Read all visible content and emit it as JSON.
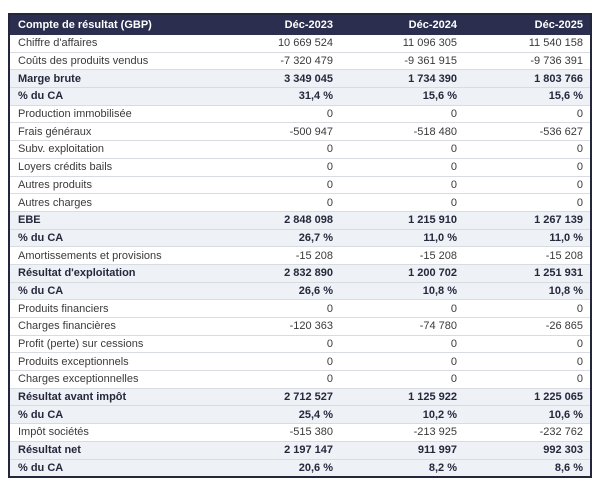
{
  "table": {
    "header": {
      "title": "Compte de résultat (GBP)",
      "columns": [
        "Déc-2023",
        "Déc-2024",
        "Déc-2025"
      ]
    },
    "rows": [
      {
        "label": "Chiffre d'affaires",
        "kind": "line",
        "values": [
          "10 669 524",
          "11 096 305",
          "11 540 158"
        ]
      },
      {
        "label": "Coûts des produits vendus",
        "kind": "line",
        "values": [
          "-7 320 479",
          "-9 361 915",
          "-9 736 391"
        ]
      },
      {
        "label": "Marge brute",
        "kind": "total",
        "values": [
          "3 349 045",
          "1 734 390",
          "1 803 766"
        ]
      },
      {
        "label": "% du CA",
        "kind": "pct",
        "values": [
          "31,4 %",
          "15,6 %",
          "15,6 %"
        ]
      },
      {
        "label": "Production immobilisée",
        "kind": "line",
        "values": [
          "0",
          "0",
          "0"
        ]
      },
      {
        "label": "Frais généraux",
        "kind": "line",
        "values": [
          "-500 947",
          "-518 480",
          "-536 627"
        ]
      },
      {
        "label": "Subv. exploitation",
        "kind": "line",
        "values": [
          "0",
          "0",
          "0"
        ]
      },
      {
        "label": "Loyers crédits bails",
        "kind": "line",
        "values": [
          "0",
          "0",
          "0"
        ]
      },
      {
        "label": "Autres produits",
        "kind": "line",
        "values": [
          "0",
          "0",
          "0"
        ]
      },
      {
        "label": "Autres charges",
        "kind": "line",
        "values": [
          "0",
          "0",
          "0"
        ]
      },
      {
        "label": "EBE",
        "kind": "total",
        "values": [
          "2 848 098",
          "1 215 910",
          "1 267 139"
        ]
      },
      {
        "label": "% du CA",
        "kind": "pct",
        "values": [
          "26,7 %",
          "11,0 %",
          "11,0 %"
        ]
      },
      {
        "label": "Amortissements et provisions",
        "kind": "line",
        "values": [
          "-15 208",
          "-15 208",
          "-15 208"
        ]
      },
      {
        "label": "Résultat d'exploitation",
        "kind": "total",
        "values": [
          "2 832 890",
          "1 200 702",
          "1 251 931"
        ]
      },
      {
        "label": "% du CA",
        "kind": "pct",
        "values": [
          "26,6 %",
          "10,8 %",
          "10,8 %"
        ]
      },
      {
        "label": "Produits financiers",
        "kind": "line",
        "values": [
          "0",
          "0",
          "0"
        ]
      },
      {
        "label": "Charges financières",
        "kind": "line",
        "values": [
          "-120 363",
          "-74 780",
          "-26 865"
        ]
      },
      {
        "label": "Profit (perte) sur cessions",
        "kind": "line",
        "values": [
          "0",
          "0",
          "0"
        ]
      },
      {
        "label": "Produits exceptionnels",
        "kind": "line",
        "values": [
          "0",
          "0",
          "0"
        ]
      },
      {
        "label": "Charges exceptionnelles",
        "kind": "line",
        "values": [
          "0",
          "0",
          "0"
        ]
      },
      {
        "label": "Résultat avant impôt",
        "kind": "total",
        "values": [
          "2 712 527",
          "1 125 922",
          "1 225 065"
        ]
      },
      {
        "label": "% du CA",
        "kind": "pct",
        "values": [
          "25,4 %",
          "10,2 %",
          "10,6 %"
        ]
      },
      {
        "label": "Impôt sociétés",
        "kind": "line",
        "values": [
          "-515 380",
          "-213 925",
          "-232 762"
        ]
      },
      {
        "label": "Résultat net",
        "kind": "total",
        "values": [
          "2 197 147",
          "911 997",
          "992 303"
        ]
      },
      {
        "label": "% du CA",
        "kind": "pct",
        "values": [
          "20,6 %",
          "8,2 %",
          "8,6 %"
        ]
      }
    ]
  },
  "colors": {
    "header_bg": "#2b2e4e",
    "header_text": "#ffffff",
    "subtotal_bg": "#eef1f6",
    "outer_border": "#23263d",
    "grid_line": "#d8dce2"
  }
}
